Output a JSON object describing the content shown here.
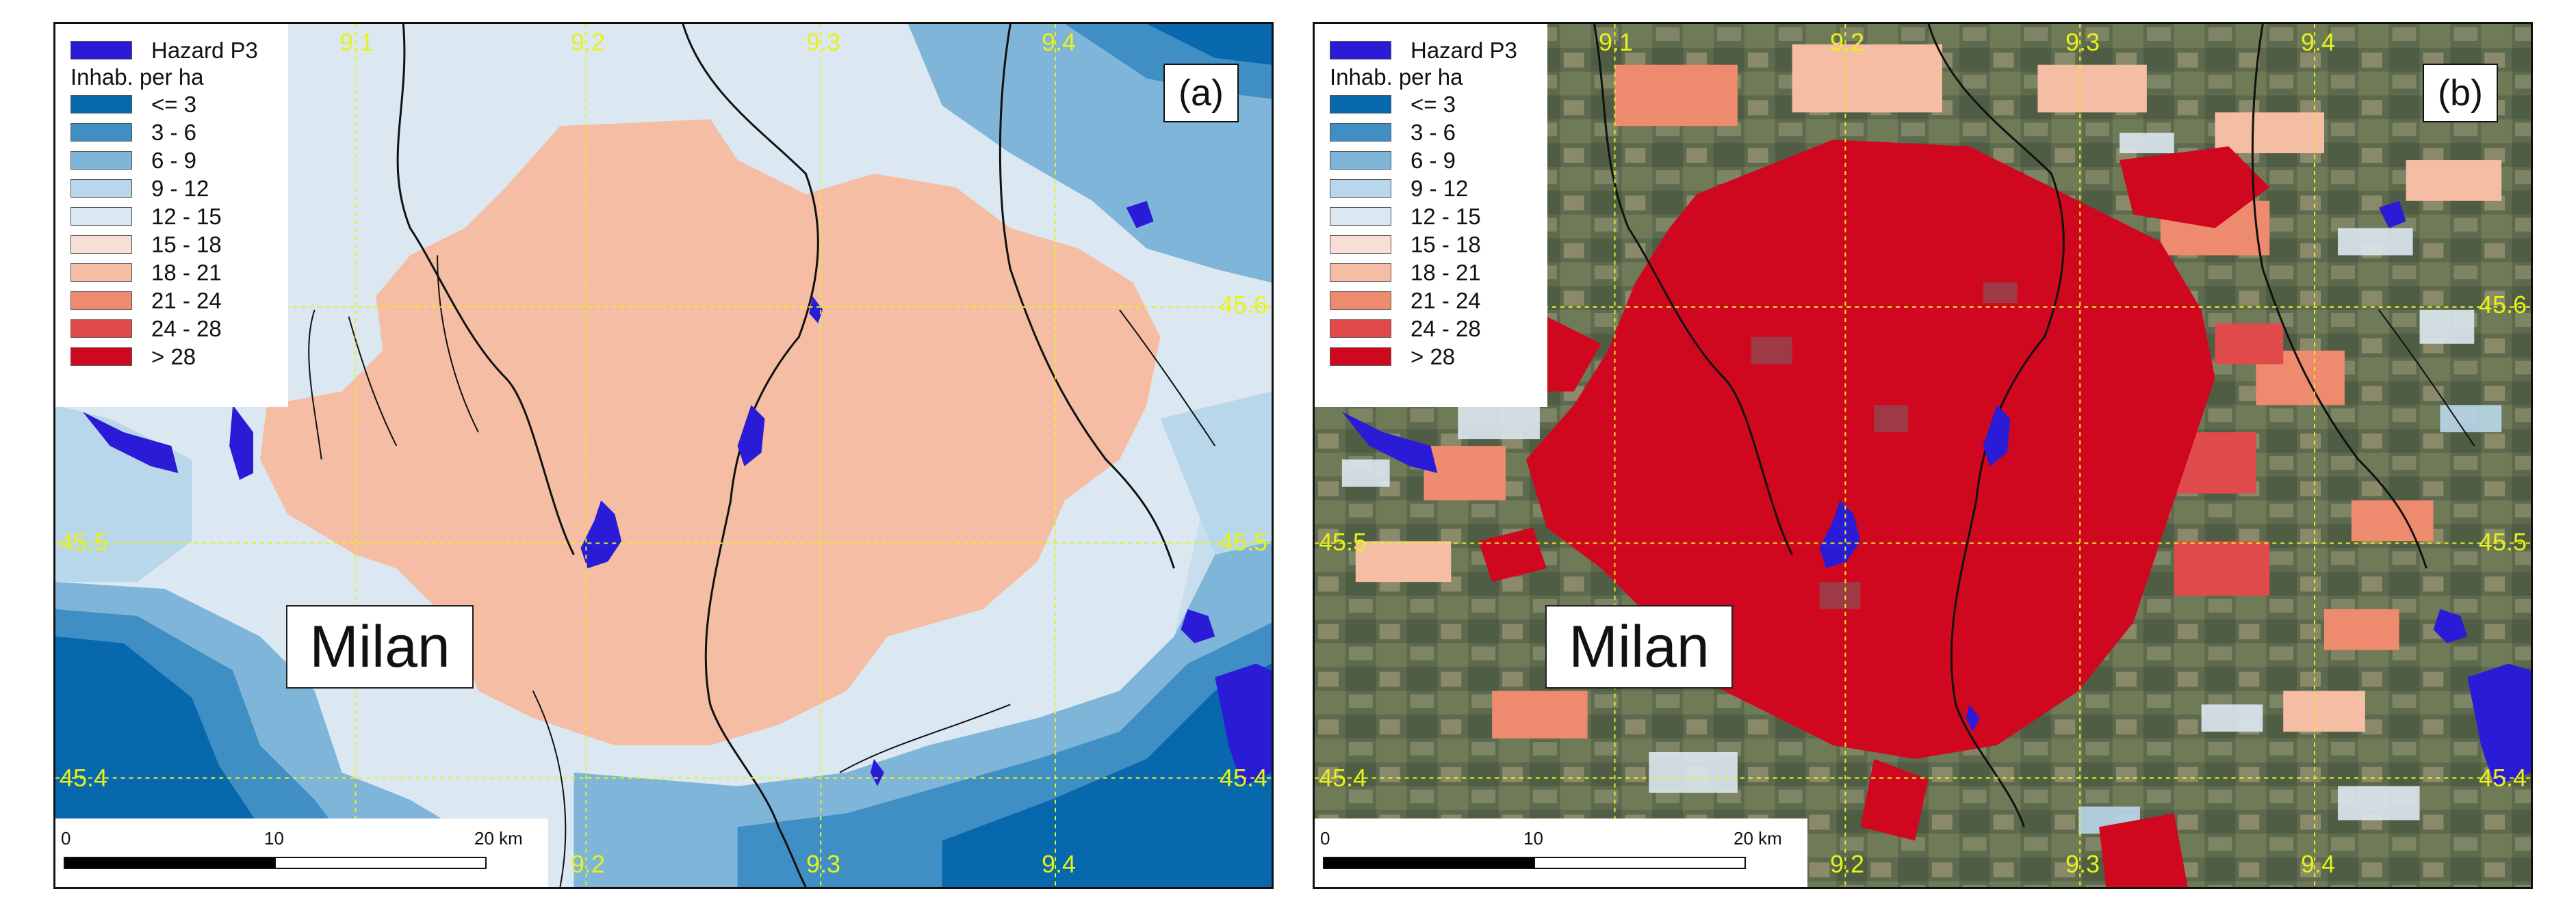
{
  "legend": {
    "hazard_label": "Hazard P3",
    "hazard_color": "#2a1bd6",
    "title": "Inhab. per ha",
    "classes": [
      {
        "label": "<= 3",
        "color": "#0768ad"
      },
      {
        "label": "3 - 6",
        "color": "#3f8ec4"
      },
      {
        "label": "6 - 9",
        "color": "#7fb5d8"
      },
      {
        "label": "9 - 12",
        "color": "#b9d7ea"
      },
      {
        "label": "12 - 15",
        "color": "#dbe8f1"
      },
      {
        "label": "15 - 18",
        "color": "#f7dfd6"
      },
      {
        "label": "18 - 21",
        "color": "#f4bda4"
      },
      {
        "label": "21 - 24",
        "color": "#ee8a6e"
      },
      {
        "label": "24 - 28",
        "color": "#e14a4a"
      },
      {
        "label": "> 28",
        "color": "#d0081f"
      }
    ]
  },
  "panels": {
    "a": {
      "label": "(a)",
      "city": "Milan",
      "lon_ticks": [
        "9.1",
        "9.2",
        "9.3",
        "9.4"
      ],
      "lon_ticks_bottom": [
        "9.2",
        "9.3",
        "9.4"
      ],
      "lat_ticks": [
        "45.6",
        "45.5",
        "45.4"
      ],
      "scale": {
        "t0": "0",
        "t1": "10",
        "t2": "20 km"
      }
    },
    "b": {
      "label": "(b)",
      "city": "Milan",
      "lon_ticks": [
        "9.1",
        "9.2",
        "9.3",
        "9.4"
      ],
      "lon_ticks_bottom": [
        "9.2",
        "9.3",
        "9.4"
      ],
      "lat_ticks": [
        "45.6",
        "45.5",
        "45.4"
      ],
      "scale": {
        "t0": "0",
        "t1": "10",
        "t2": "20 km"
      }
    }
  },
  "colors": {
    "graticule": "#e6f21a",
    "river": "#111111"
  }
}
